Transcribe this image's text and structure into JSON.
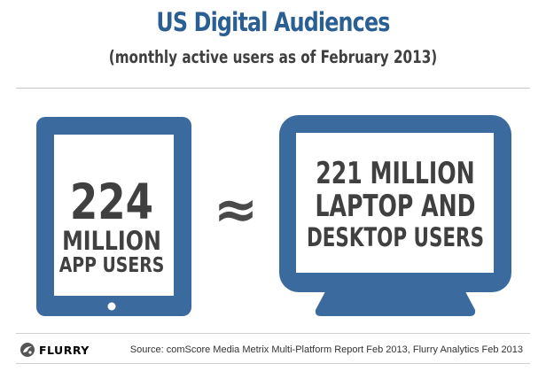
{
  "header": {
    "title": "US Digital Audiences",
    "subtitle": "(monthly active users as of February 2013)"
  },
  "colors": {
    "title": "#2a5f93",
    "device_frame": "#3b6a9e",
    "device_text": "#404040",
    "approx_symbol": "#4a4a4a",
    "screen": "#ffffff"
  },
  "chart_data": {
    "type": "table",
    "title": "US Digital Audiences",
    "subtitle": "(monthly active users as of February 2013)",
    "comparison_symbol": "≈",
    "categories": [
      "App users",
      "Laptop and desktop users"
    ],
    "values": [
      224,
      221
    ],
    "unit": "million",
    "panels": [
      {
        "device": "tablet",
        "icon": "tablet-icon",
        "value": 224,
        "lines": [
          "224",
          "MILLION",
          "APP USERS"
        ]
      },
      {
        "device": "monitor",
        "icon": "monitor-icon",
        "value": 221,
        "lines": [
          "221 MILLION",
          "LAPTOP AND",
          "DESKTOP USERS"
        ]
      }
    ]
  },
  "footer": {
    "brand": "FLURRY",
    "brand_icon": "flurry-logo-icon",
    "source": "Source: comScore Media Metrix Multi-Platform Report Feb 2013, Flurry Analytics Feb 2013"
  }
}
